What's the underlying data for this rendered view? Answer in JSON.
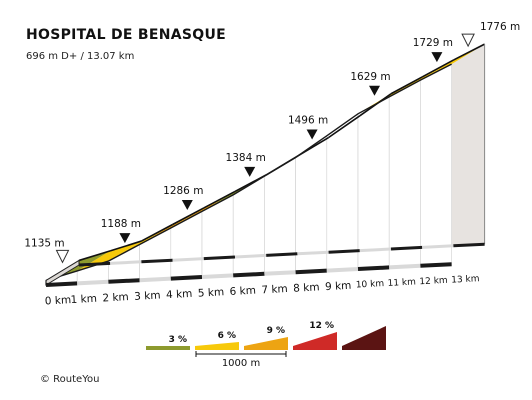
{
  "header": {
    "title": "HOSPITAL DE BENASQUE",
    "subtitle": "696 m D+ / 13.07 km"
  },
  "footer": {
    "credit": "© RouteYou"
  },
  "colors": {
    "grade_0_3": "#8d9a2e",
    "grade_3_6": "#f7c90a",
    "grade_6_9": "#eda412",
    "grade_9_12": "#cf2a27",
    "grade_12_plus": "#5b1413",
    "side_wall": "#e7e3e0",
    "top_strip": "#fbe8a2",
    "outline": "#222222"
  },
  "chart_data": {
    "type": "area",
    "title": "HOSPITAL DE BENASQUE",
    "subtitle": "696 m D+ / 13.07 km",
    "x_unit": "km",
    "x": [
      0,
      1,
      2,
      3,
      4,
      5,
      6,
      7,
      8,
      9,
      10,
      11,
      12,
      13
    ],
    "x_tick_labels": [
      "0 km",
      "1 km",
      "2 km",
      "3 km",
      "4 km",
      "5 km",
      "6 km",
      "7 km",
      "8 km",
      "9 km",
      "10 km",
      "11 km",
      "12 km",
      "13 km"
    ],
    "elevation": [
      1135,
      1161,
      1188,
      1237,
      1286,
      1335,
      1384,
      1440,
      1496,
      1562,
      1629,
      1679,
      1729,
      1776
    ],
    "segment_grade_class": [
      "0-3",
      "3-6",
      "3-6",
      "6-9",
      "6-9",
      "0-3",
      "3-6",
      "6-9",
      "6-9",
      "3-6",
      "3-6",
      "3-6",
      "3-6"
    ],
    "markers": [
      {
        "km": 0,
        "elevation": 1135,
        "label": "1135 m",
        "style": "start"
      },
      {
        "km": 2,
        "elevation": 1188,
        "label": "1188 m",
        "style": "point"
      },
      {
        "km": 4,
        "elevation": 1286,
        "label": "1286 m",
        "style": "point"
      },
      {
        "km": 6,
        "elevation": 1384,
        "label": "1384 m",
        "style": "point"
      },
      {
        "km": 8,
        "elevation": 1496,
        "label": "1496 m",
        "style": "point"
      },
      {
        "km": 10,
        "elevation": 1629,
        "label": "1629 m",
        "style": "point"
      },
      {
        "km": 12,
        "elevation": 1729,
        "label": "1729 m",
        "style": "point"
      },
      {
        "km": 13,
        "elevation": 1776,
        "label": "1776 m",
        "style": "end"
      }
    ],
    "legend": {
      "items": [
        {
          "label": "3 %",
          "grade_class": "0-3"
        },
        {
          "label": "6 %",
          "grade_class": "3-6"
        },
        {
          "label": "9 %",
          "grade_class": "6-9"
        },
        {
          "label": "12 %",
          "grade_class": "9-12"
        },
        {
          "label": "",
          "grade_class": "12+"
        }
      ],
      "scale_label": "1000 m"
    }
  }
}
